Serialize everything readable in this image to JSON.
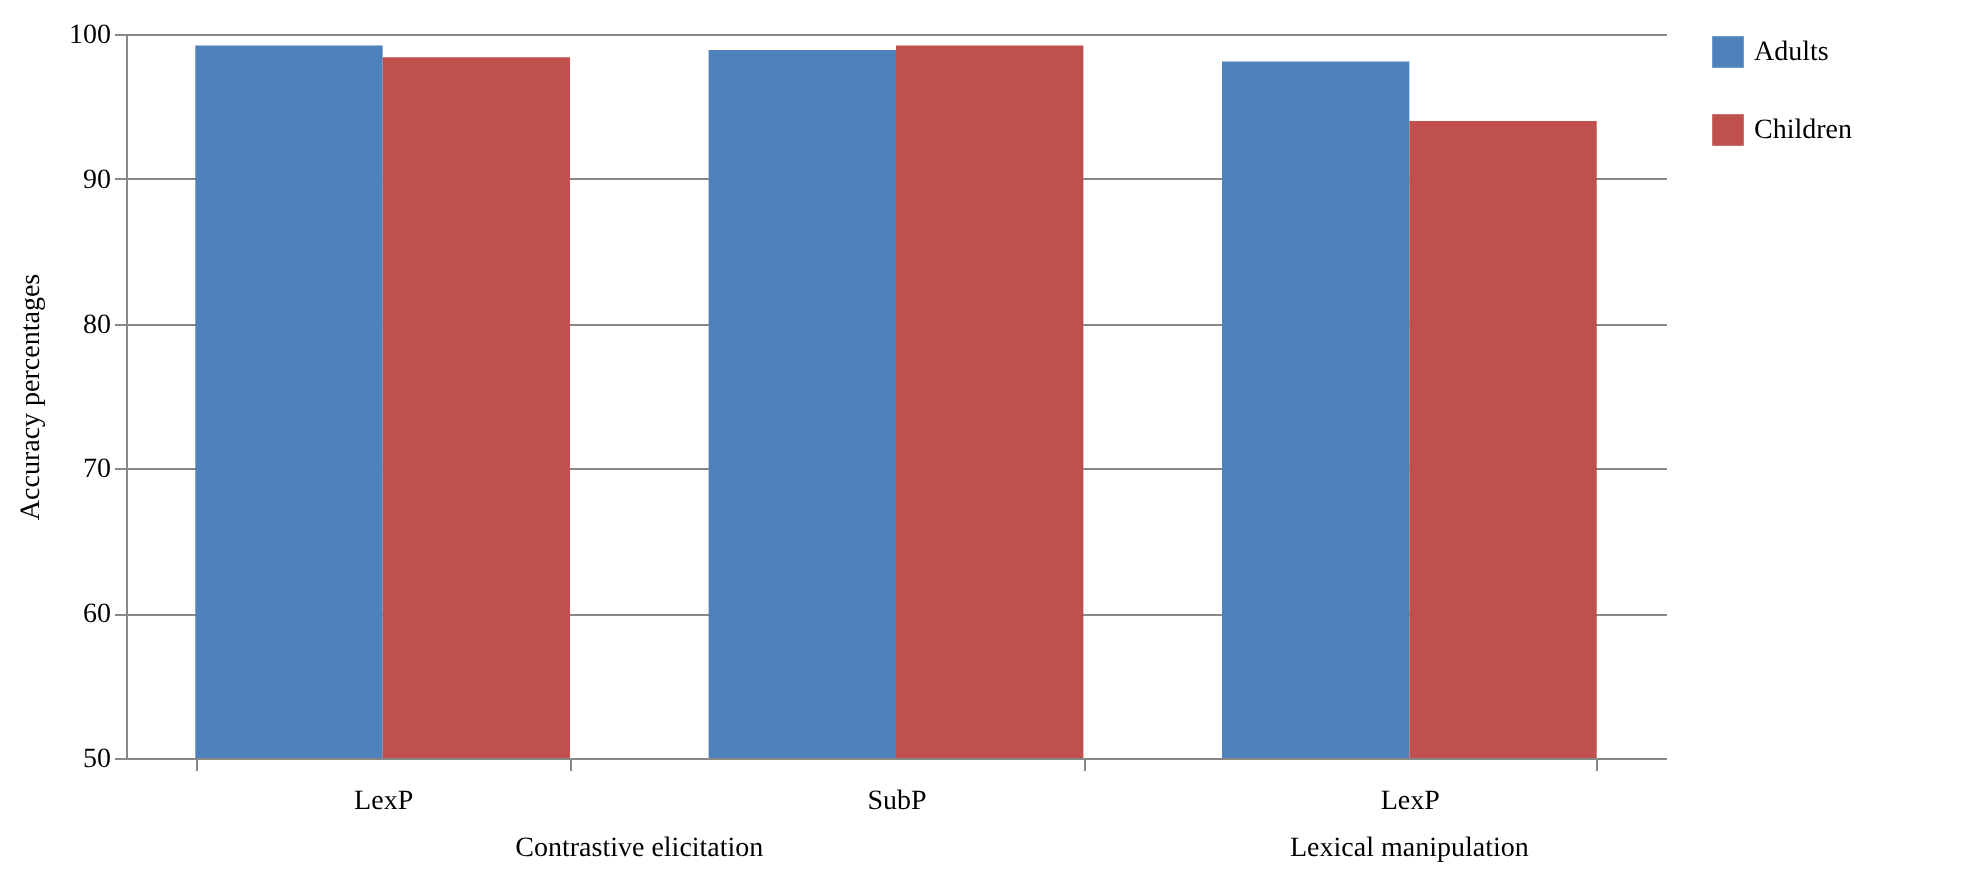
{
  "chart_data": {
    "type": "bar",
    "ylabel": "Accuracy percentages",
    "categories": [
      "LexP",
      "SubP",
      "LexP"
    ],
    "series": [
      {
        "name": "Adults",
        "color": "#4f81bd",
        "values": [
          99.2,
          98.9,
          98.1
        ]
      },
      {
        "name": "Children",
        "color": "#c0504d",
        "values": [
          98.4,
          99.2,
          94.0
        ]
      }
    ],
    "ylim": [
      50,
      100
    ],
    "yticks": [
      50,
      60,
      70,
      80,
      90,
      100
    ],
    "grid": "y",
    "legend": "top right",
    "annotations": [
      "Contrastive elicitation",
      "Lexical manipulation"
    ]
  }
}
